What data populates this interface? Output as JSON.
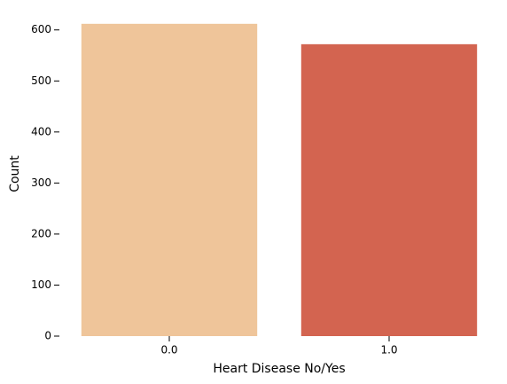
{
  "chart_data": {
    "type": "bar",
    "x_label": "Heart Disease No/Yes",
    "y_label": "Count",
    "categories": [
      "0.0",
      "1.0"
    ],
    "values": [
      612,
      572
    ],
    "colors": [
      "#efc59a",
      "#d36450"
    ],
    "ylim": [
      0,
      643
    ],
    "yticks": [
      0,
      100,
      200,
      300,
      400,
      500,
      600
    ]
  }
}
